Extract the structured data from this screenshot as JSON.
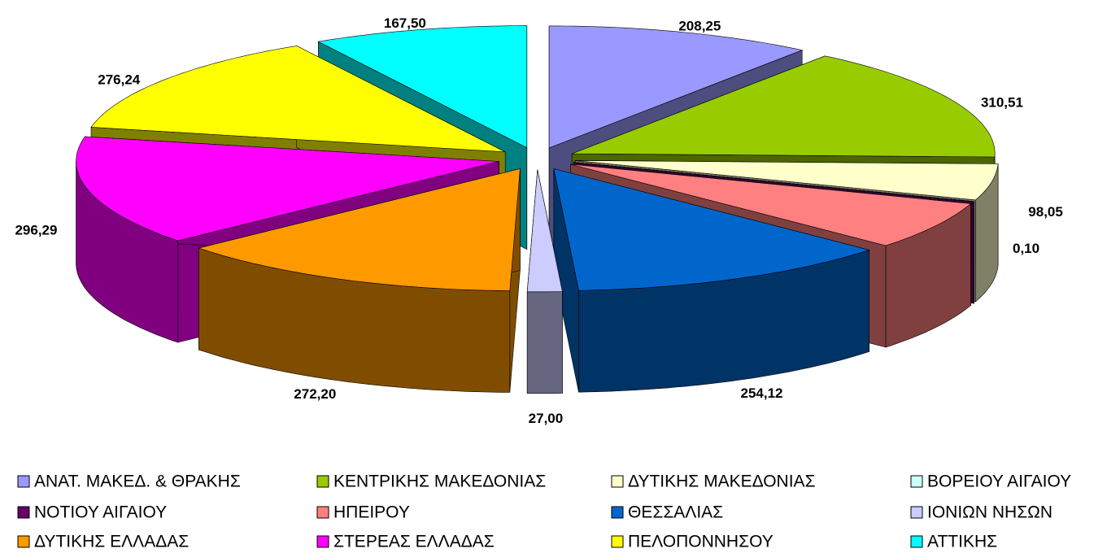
{
  "chart_data": {
    "type": "pie3d",
    "categories": [
      "ΑΝΑΤ. ΜΑΚΕΔ. & ΘΡΑΚΗΣ",
      "ΚΕΝΤΡΙΚΗΣ ΜΑΚΕΔΟΝΙΑΣ",
      "ΔΥΤΙΚΗΣ ΜΑΚΕΔΟΝΙΑΣ",
      "ΒΟΡΕΙΟΥ ΑΙΓΑΙΟΥ",
      "ΝΟΤΙΟΥ ΑΙΓΑΙΟΥ",
      "ΗΠΕΙΡΟΥ",
      "ΘΕΣΣΑΛΙΑΣ",
      "ΙΟΝΙΩΝ ΝΗΣΩΝ",
      "ΔΥΤΙΚΗΣ ΕΛΛΑΔΑΣ",
      "ΣΤΕΡΕΑΣ ΕΛΛΑΔΑΣ",
      "ΠΕΛΟΠΟΝΝΗΣΟΥ",
      "ΑΤΤΙΚΗΣ"
    ],
    "values": [
      208.25,
      310.51,
      98.05,
      0,
      0.1,
      130,
      254.12,
      27.0,
      272.2,
      296.29,
      276.24,
      167.5
    ],
    "value_labels": [
      "208,25",
      "310,51",
      "98,05",
      null,
      "0,10",
      null,
      "254,12",
      "27,00",
      "272,20",
      "296,29",
      "276,24",
      "167,50"
    ],
    "colors": [
      "#9999ff",
      "#99cc00",
      "#ffffcc",
      "#ccffff",
      "#660066",
      "#ff8080",
      "#0066cc",
      "#ccccff",
      "#ff9900",
      "#ff00ff",
      "#ffff00",
      "#00ffff"
    ],
    "legend": "bottom"
  }
}
